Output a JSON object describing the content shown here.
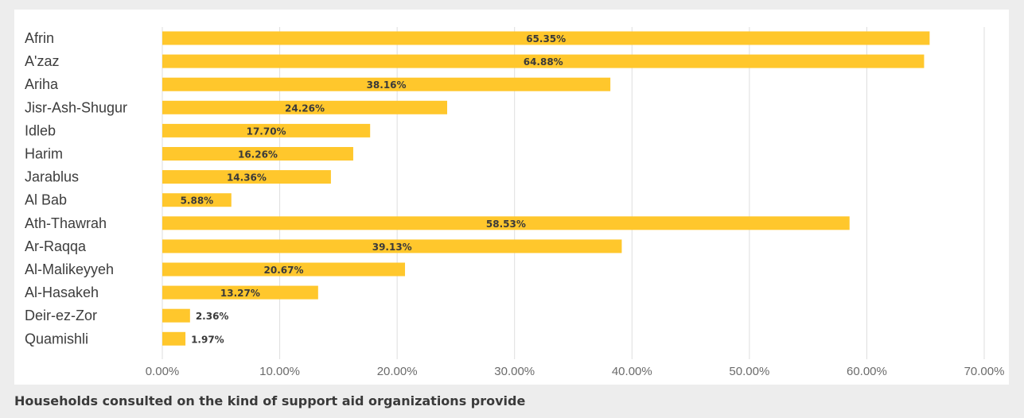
{
  "caption": "Households consulted on the kind of support aid organizations provide",
  "colors": {
    "bar": "#ffc72c",
    "grid": "#dedede",
    "category_text": "#3d3d3d",
    "tick_text": "#6b6b6b",
    "value_text": "#3a3a3a"
  },
  "chart_data": {
    "type": "bar",
    "orientation": "horizontal",
    "categories": [
      "Afrin",
      "A'zaz",
      "Ariha",
      "Jisr-Ash-Shugur",
      "Idleb",
      "Harim",
      "Jarablus",
      "Al Bab",
      "Ath-Thawrah",
      "Ar-Raqqa",
      "Al-Malikeyyeh",
      "Al-Hasakeh",
      "Deir-ez-Zor",
      "Quamishli"
    ],
    "values": [
      65.35,
      64.88,
      38.16,
      24.26,
      17.7,
      16.26,
      14.36,
      5.88,
      58.53,
      39.13,
      20.67,
      13.27,
      2.36,
      1.97
    ],
    "value_labels": [
      "65.35%",
      "64.88%",
      "38.16%",
      "24.26%",
      "17.70%",
      "16.26%",
      "14.36%",
      "5.88%",
      "58.53%",
      "39.13%",
      "20.67%",
      "13.27%",
      "2.36%",
      "1.97%"
    ],
    "x_ticks": [
      0,
      10,
      20,
      30,
      40,
      50,
      60,
      70
    ],
    "x_tick_labels": [
      "0.00%",
      "10.00%",
      "20.00%",
      "30.00%",
      "40.00%",
      "50.00%",
      "60.00%",
      "70.00%"
    ],
    "xlim": [
      0,
      70
    ],
    "grid": true,
    "legend": "none",
    "title": "",
    "xlabel": "",
    "ylabel": ""
  }
}
